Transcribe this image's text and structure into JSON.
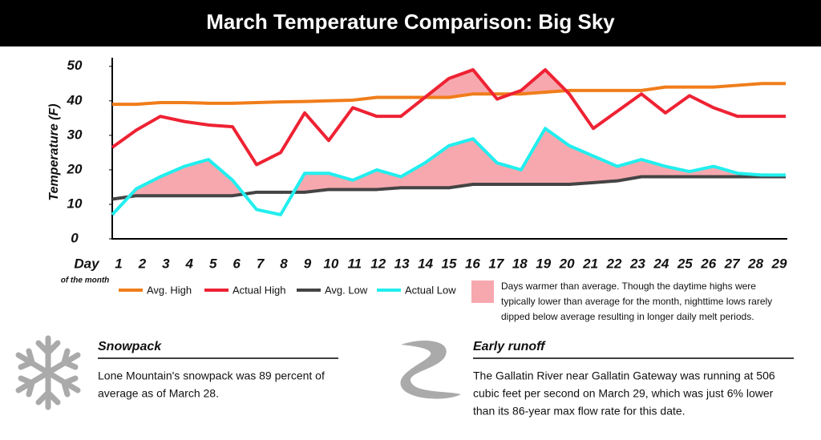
{
  "chart_data": {
    "type": "line",
    "title": "March Temperature Comparison: Big Sky",
    "ylabel": "Temperature (F)",
    "xlabel": "Day",
    "xlabel_sub": "of the month",
    "categories": [
      "1",
      "2",
      "3",
      "4",
      "5",
      "6",
      "7",
      "8",
      "9",
      "10",
      "11",
      "12",
      "13",
      "14",
      "15",
      "16",
      "17",
      "18",
      "19",
      "20",
      "21",
      "22",
      "23",
      "24",
      "25",
      "26",
      "27",
      "28",
      "29"
    ],
    "series": [
      {
        "name": "Avg. High",
        "color": "#f07d1a",
        "values": [
          39,
          39,
          39.5,
          39.5,
          39.3,
          39.3,
          39.5,
          39.7,
          39.8,
          40,
          40.2,
          41,
          41,
          41,
          41,
          42,
          42,
          42,
          42.5,
          43,
          43,
          43,
          43,
          44,
          44,
          44,
          44.5,
          45,
          45
        ]
      },
      {
        "name": "Actual High",
        "color": "#ee2233",
        "values": [
          26.5,
          31.5,
          35.5,
          34,
          33,
          32.5,
          21.5,
          25,
          36.5,
          28.5,
          38,
          35.5,
          35.5,
          41,
          46.5,
          49,
          40.5,
          43,
          49,
          42,
          32,
          37,
          42,
          36.5,
          41.5,
          38,
          35.5,
          35.5,
          35.5
        ]
      },
      {
        "name": "Avg. Low",
        "color": "#444444",
        "values": [
          11.5,
          12.5,
          12.5,
          12.5,
          12.5,
          12.5,
          13.5,
          13.5,
          13.5,
          14.3,
          14.3,
          14.3,
          14.8,
          14.8,
          14.8,
          15.8,
          15.8,
          15.8,
          15.8,
          15.8,
          16.3,
          16.8,
          18,
          18,
          18,
          18,
          18,
          18,
          18
        ]
      },
      {
        "name": "Actual Low",
        "color": "#22eeee",
        "values": [
          7,
          14.5,
          18,
          21,
          23,
          17,
          8.5,
          7,
          19,
          19,
          17,
          20,
          18,
          22,
          27,
          29,
          22,
          20,
          32,
          27,
          24,
          21,
          23,
          21,
          19.5,
          21,
          19,
          18.5,
          18.5
        ]
      }
    ],
    "fill_color": "#f7a8ae",
    "fill_label": [
      "Days warmer than average. Though the daytime highs were",
      "typically lower than average for the month, nighttime lows rarely",
      "dipped below average resulting in longer daily melt periods."
    ],
    "ylim": [
      0,
      52.5
    ],
    "yticks": [
      0,
      10,
      20,
      30,
      40,
      50
    ]
  },
  "panels": [
    {
      "heading": "Snowpack",
      "lines": [
        "Lone Mountain's snowpack was 89 percent of",
        "average as of March 28."
      ]
    },
    {
      "heading": "Early runoff",
      "lines": [
        "The Gallatin River near Gallatin Gateway was running at 506",
        "cubic feet per second on March 29, which was just 6% lower",
        "than its 86-year max flow rate for this date."
      ]
    }
  ]
}
